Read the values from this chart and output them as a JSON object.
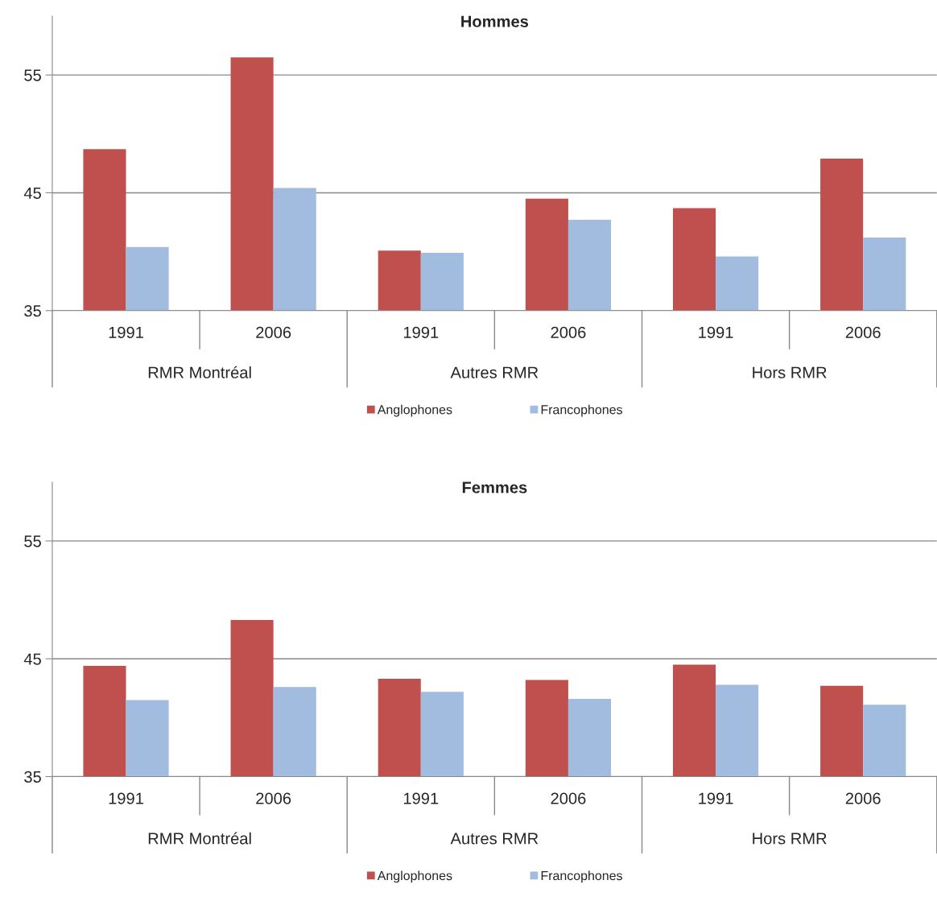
{
  "chart_data": [
    {
      "type": "bar",
      "title": "Hommes",
      "categories": [
        "1991",
        "2006",
        "1991",
        "2006",
        "1991",
        "2006"
      ],
      "annotations": [
        "RMR Montréal",
        "Autres RMR",
        "Hors RMR"
      ],
      "series": [
        {
          "name": "Anglophones",
          "color": "#c0504d",
          "values": [
            48.7,
            56.5,
            40.1,
            44.5,
            43.7,
            47.9
          ]
        },
        {
          "name": "Francophones",
          "color": "#a2bcdf",
          "values": [
            40.4,
            45.4,
            39.9,
            42.7,
            39.6,
            41.2
          ]
        }
      ],
      "ylim": [
        35,
        60
      ],
      "yticks": [
        35,
        45,
        55
      ],
      "grid": "y",
      "legend": "bottom"
    },
    {
      "type": "bar",
      "title": "Femmes",
      "categories": [
        "1991",
        "2006",
        "1991",
        "2006",
        "1991",
        "2006"
      ],
      "annotations": [
        "RMR Montréal",
        "Autres RMR",
        "Hors RMR"
      ],
      "series": [
        {
          "name": "Anglophones",
          "color": "#c0504d",
          "values": [
            44.4,
            48.3,
            43.3,
            43.2,
            44.5,
            42.7
          ]
        },
        {
          "name": "Francophones",
          "color": "#a2bcdf",
          "values": [
            41.5,
            42.6,
            42.2,
            41.6,
            42.8,
            41.1
          ]
        }
      ],
      "ylim": [
        35,
        60
      ],
      "yticks": [
        35,
        45,
        55
      ],
      "grid": "y",
      "legend": "bottom"
    }
  ]
}
